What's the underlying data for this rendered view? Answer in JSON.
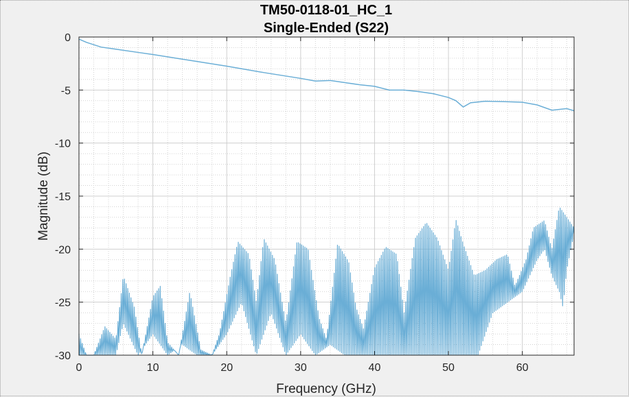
{
  "chart_data": {
    "type": "line",
    "title": "TM50-0118-01_HC_1",
    "subtitle": "Single-Ended (S22)",
    "xlabel": "Frequency (GHz)",
    "ylabel": "Magnitude (dB)",
    "xlim": [
      0,
      67
    ],
    "ylim": [
      -30,
      0
    ],
    "xticks": [
      "0",
      "10",
      "20",
      "30",
      "40",
      "50",
      "60"
    ],
    "yticks": [
      "0",
      "-5",
      "-10",
      "-15",
      "-20",
      "-25",
      "-30"
    ],
    "grid": "major and minor",
    "line_color": "#6aaed6",
    "series": [
      {
        "name": "",
        "role": "insertion-trace",
        "x": [
          0,
          1,
          3,
          5,
          8,
          10,
          15,
          20,
          25,
          30,
          32,
          34,
          36,
          38,
          40,
          42,
          44,
          46,
          48,
          50,
          51,
          52,
          53,
          55,
          58,
          60,
          62,
          64,
          66,
          67
        ],
        "y": [
          -0.2,
          -0.5,
          -0.95,
          -1.15,
          -1.45,
          -1.65,
          -2.2,
          -2.75,
          -3.35,
          -3.9,
          -4.15,
          -4.1,
          -4.3,
          -4.5,
          -4.65,
          -5.0,
          -5.0,
          -5.15,
          -5.35,
          -5.7,
          -6.0,
          -6.6,
          -6.2,
          -6.05,
          -6.1,
          -6.15,
          -6.4,
          -6.9,
          -6.75,
          -6.95
        ]
      },
      {
        "name": "",
        "role": "reflection-envelope-upper",
        "x": [
          0,
          1,
          2,
          3.5,
          5,
          6,
          7.5,
          8.5,
          10,
          11,
          12,
          13.5,
          15,
          16.5,
          18,
          19,
          20.5,
          21.5,
          23,
          24,
          25,
          26.5,
          28,
          29.5,
          31,
          32.5,
          33.5,
          35,
          36.5,
          37.5,
          38.5,
          40,
          41.5,
          43,
          44,
          45.5,
          47,
          48.5,
          50,
          51,
          52,
          53.5,
          55,
          56.5,
          58,
          59,
          60.5,
          61.5,
          63,
          64,
          65,
          66,
          67
        ],
        "y": [
          -28,
          -30,
          -30,
          -27.3,
          -28.5,
          -22.5,
          -25.5,
          -30,
          -24.5,
          -23.5,
          -28.8,
          -30,
          -24,
          -29.5,
          -30,
          -28,
          -22.5,
          -19.3,
          -20.5,
          -25,
          -19,
          -21,
          -27,
          -19.3,
          -20,
          -26.5,
          -28.5,
          -19.5,
          -21.2,
          -25.5,
          -27.5,
          -21.8,
          -19.8,
          -20.5,
          -26,
          -19,
          -17.5,
          -19,
          -22,
          -17.2,
          -19.5,
          -22.5,
          -22,
          -21,
          -20.5,
          -23.5,
          -21,
          -18,
          -17.3,
          -20,
          -16,
          -17,
          -18
        ]
      },
      {
        "name": "",
        "role": "reflection-envelope-lower",
        "x": [
          0,
          3,
          5,
          6,
          8,
          10,
          12,
          14,
          16,
          18,
          20,
          22,
          24,
          26,
          28,
          30,
          32,
          34,
          36,
          38,
          40,
          42,
          44,
          46,
          48,
          50,
          52,
          54,
          56,
          58,
          60,
          62,
          63,
          64,
          65,
          65.5,
          66,
          67
        ],
        "y": [
          -30,
          -30,
          -30,
          -27,
          -30,
          -28,
          -30,
          -29,
          -30,
          -30,
          -28,
          -25,
          -30,
          -26,
          -30,
          -28,
          -30,
          -29,
          -30,
          -30,
          -30,
          -30,
          -30,
          -30,
          -30,
          -30,
          -30,
          -30,
          -26,
          -25,
          -24,
          -21,
          -20,
          -22.5,
          -24,
          -25.5,
          -22,
          -18.5
        ]
      }
    ]
  }
}
